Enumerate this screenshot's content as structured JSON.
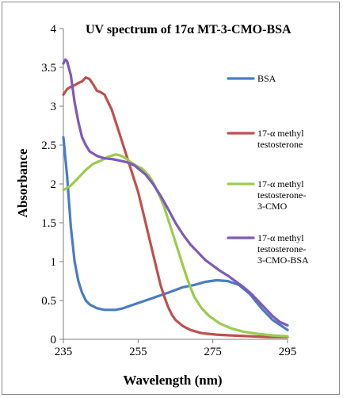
{
  "chart_data": {
    "type": "line",
    "title": "UV spectrum of 17α MT-3-CMO-BSA",
    "xlabel": "Wavelength (nm)",
    "ylabel": "Absorbance",
    "xlim": [
      235,
      295
    ],
    "ylim": [
      0,
      4
    ],
    "xticks": [
      "235",
      "255",
      "275",
      "295"
    ],
    "yticks": [
      "0",
      "0.5",
      "1",
      "1.5",
      "2",
      "2.5",
      "3",
      "3.5",
      "4"
    ],
    "grid": false,
    "legend_position": "right",
    "series": [
      {
        "name": "BSA",
        "color": "#4a7cc4",
        "points": [
          [
            235,
            2.6
          ],
          [
            236,
            2.1
          ],
          [
            237,
            1.45
          ],
          [
            238,
            1.0
          ],
          [
            239,
            0.75
          ],
          [
            240,
            0.6
          ],
          [
            241,
            0.5
          ],
          [
            242,
            0.45
          ],
          [
            244,
            0.4
          ],
          [
            246,
            0.38
          ],
          [
            249,
            0.38
          ],
          [
            251,
            0.4
          ],
          [
            254,
            0.45
          ],
          [
            257,
            0.5
          ],
          [
            260,
            0.55
          ],
          [
            263,
            0.6
          ],
          [
            267,
            0.67
          ],
          [
            270,
            0.7
          ],
          [
            273,
            0.74
          ],
          [
            276,
            0.76
          ],
          [
            279,
            0.75
          ],
          [
            282,
            0.7
          ],
          [
            285,
            0.58
          ],
          [
            288,
            0.4
          ],
          [
            291,
            0.25
          ],
          [
            295,
            0.12
          ]
        ]
      },
      {
        "name": "17-α methyl testosterone",
        "color": "#c0504d",
        "points": [
          [
            235,
            3.15
          ],
          [
            236,
            3.22
          ],
          [
            237,
            3.25
          ],
          [
            238,
            3.27
          ],
          [
            239,
            3.3
          ],
          [
            240,
            3.32
          ],
          [
            241,
            3.37
          ],
          [
            242,
            3.35
          ],
          [
            243,
            3.28
          ],
          [
            244,
            3.2
          ],
          [
            245,
            3.18
          ],
          [
            246,
            3.15
          ],
          [
            247,
            3.05
          ],
          [
            248,
            2.95
          ],
          [
            249,
            2.8
          ],
          [
            250,
            2.65
          ],
          [
            251,
            2.5
          ],
          [
            252,
            2.35
          ],
          [
            253,
            2.2
          ],
          [
            254,
            2.05
          ],
          [
            255,
            1.9
          ],
          [
            256,
            1.7
          ],
          [
            257,
            1.5
          ],
          [
            258,
            1.3
          ],
          [
            259,
            1.1
          ],
          [
            260,
            0.9
          ],
          [
            261,
            0.7
          ],
          [
            262,
            0.55
          ],
          [
            263,
            0.42
          ],
          [
            264,
            0.32
          ],
          [
            265,
            0.25
          ],
          [
            267,
            0.17
          ],
          [
            269,
            0.12
          ],
          [
            272,
            0.08
          ],
          [
            276,
            0.06
          ],
          [
            280,
            0.05
          ],
          [
            285,
            0.04
          ],
          [
            290,
            0.03
          ],
          [
            295,
            0.03
          ]
        ]
      },
      {
        "name": "17-α methyl testosterone-3-CMO",
        "color": "#9acd4c",
        "points": [
          [
            235,
            1.92
          ],
          [
            237,
            1.98
          ],
          [
            239,
            2.08
          ],
          [
            241,
            2.18
          ],
          [
            243,
            2.26
          ],
          [
            245,
            2.3
          ],
          [
            247,
            2.35
          ],
          [
            249,
            2.38
          ],
          [
            250,
            2.37
          ],
          [
            251,
            2.35
          ],
          [
            252,
            2.32
          ],
          [
            253,
            2.28
          ],
          [
            254,
            2.25
          ],
          [
            255,
            2.22
          ],
          [
            256,
            2.2
          ],
          [
            257,
            2.15
          ],
          [
            258,
            2.1
          ],
          [
            259,
            2.02
          ],
          [
            260,
            1.92
          ],
          [
            261,
            1.82
          ],
          [
            262,
            1.7
          ],
          [
            263,
            1.55
          ],
          [
            264,
            1.4
          ],
          [
            265,
            1.25
          ],
          [
            266,
            1.1
          ],
          [
            267,
            0.95
          ],
          [
            268,
            0.8
          ],
          [
            269,
            0.67
          ],
          [
            270,
            0.55
          ],
          [
            272,
            0.4
          ],
          [
            274,
            0.3
          ],
          [
            277,
            0.2
          ],
          [
            280,
            0.14
          ],
          [
            283,
            0.1
          ],
          [
            287,
            0.07
          ],
          [
            291,
            0.05
          ],
          [
            295,
            0.04
          ]
        ]
      },
      {
        "name": "17-α methyl testosterone-3-CMO-BSA",
        "color": "#7e5ab8",
        "points": [
          [
            235,
            3.55
          ],
          [
            235.5,
            3.6
          ],
          [
            236,
            3.58
          ],
          [
            237,
            3.4
          ],
          [
            238,
            3.05
          ],
          [
            239,
            2.8
          ],
          [
            240,
            2.6
          ],
          [
            241,
            2.5
          ],
          [
            242,
            2.42
          ],
          [
            244,
            2.36
          ],
          [
            246,
            2.33
          ],
          [
            248,
            2.32
          ],
          [
            250,
            2.3
          ],
          [
            252,
            2.28
          ],
          [
            253,
            2.26
          ],
          [
            254,
            2.24
          ],
          [
            255,
            2.2
          ],
          [
            257,
            2.12
          ],
          [
            259,
            2.0
          ],
          [
            261,
            1.85
          ],
          [
            263,
            1.68
          ],
          [
            265,
            1.5
          ],
          [
            267,
            1.35
          ],
          [
            269,
            1.22
          ],
          [
            271,
            1.12
          ],
          [
            273,
            1.02
          ],
          [
            275,
            0.95
          ],
          [
            277,
            0.88
          ],
          [
            279,
            0.82
          ],
          [
            281,
            0.75
          ],
          [
            283,
            0.68
          ],
          [
            285,
            0.6
          ],
          [
            287,
            0.5
          ],
          [
            289,
            0.4
          ],
          [
            291,
            0.3
          ],
          [
            293,
            0.22
          ],
          [
            295,
            0.18
          ]
        ]
      }
    ]
  }
}
